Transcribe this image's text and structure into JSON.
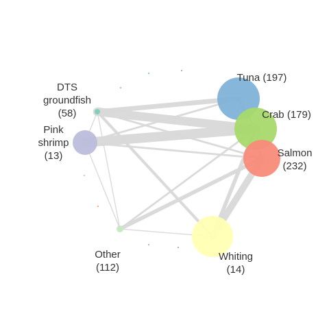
{
  "nodes": [
    {
      "id": "tuna",
      "label_lines": [
        "Tuna (197)"
      ],
      "color": "#7fb3d8"
    },
    {
      "id": "crab",
      "label_lines": [
        "Crab (179)"
      ],
      "color": "#a6d96a"
    },
    {
      "id": "salmon",
      "label_lines": [
        "Salmon",
        "(232)"
      ],
      "color": "#f98b7a"
    },
    {
      "id": "dts",
      "label_lines": [
        "DTS",
        "groundfish",
        "(58)"
      ],
      "color": "#7fcdbb"
    },
    {
      "id": "pink",
      "label_lines": [
        "Pink",
        "shrimp",
        "(13)"
      ],
      "color": "#bcbddc"
    },
    {
      "id": "other",
      "label_lines": [
        "Other",
        "(112)"
      ],
      "color": "#c7e9c0"
    },
    {
      "id": "whiting",
      "label_lines": [
        "Whiting",
        "(14)"
      ],
      "color": "#ffffb3"
    }
  ],
  "edge_color": "#d9d9d9",
  "edges": [
    {
      "source": "pink",
      "target": "crab",
      "weight": 10
    },
    {
      "source": "dts",
      "target": "crab",
      "weight": 9
    },
    {
      "source": "dts",
      "target": "tuna",
      "weight": 5
    },
    {
      "source": "whiting",
      "target": "salmon",
      "weight": 7
    },
    {
      "source": "whiting",
      "target": "crab",
      "weight": 4
    },
    {
      "source": "other",
      "target": "salmon",
      "weight": 4
    },
    {
      "source": "other",
      "target": "crab",
      "weight": 2
    },
    {
      "source": "dts",
      "target": "salmon",
      "weight": 2
    },
    {
      "source": "dts",
      "target": "whiting",
      "weight": 3
    },
    {
      "source": "pink",
      "target": "tuna",
      "weight": 2
    },
    {
      "source": "pink",
      "target": "salmon",
      "weight": 2
    },
    {
      "source": "dts",
      "target": "pink",
      "weight": 1
    },
    {
      "source": "dts",
      "target": "other",
      "weight": 1
    },
    {
      "source": "pink",
      "target": "other",
      "weight": 1
    },
    {
      "source": "other",
      "target": "whiting",
      "weight": 1
    },
    {
      "source": "tuna",
      "target": "crab",
      "weight": 2
    },
    {
      "source": "crab",
      "target": "salmon",
      "weight": 2
    },
    {
      "source": "tuna",
      "target": "salmon",
      "weight": 1
    }
  ]
}
